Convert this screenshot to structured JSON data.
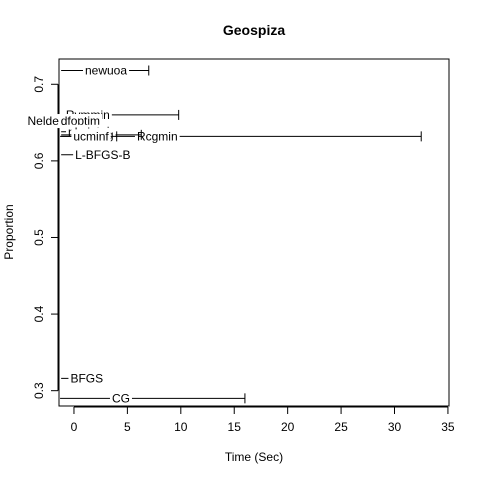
{
  "chart_data": {
    "type": "scatter",
    "title": "Geospiza",
    "xlabel": "Time (Sec)",
    "ylabel": "Proportion",
    "xlim": [
      -1.4,
      35.1
    ],
    "ylim": [
      0.28,
      0.733
    ],
    "x_ticks": [
      "0",
      "5",
      "10",
      "15",
      "20",
      "25",
      "30",
      "35"
    ],
    "y_ticks": [
      "0.3",
      "0.4",
      "0.5",
      "0.6",
      "0.7"
    ],
    "points": [
      {
        "label": "newuoa",
        "x": 3.0,
        "y": 0.718,
        "xlo": -1.2,
        "xhi": 7.0
      },
      {
        "label": "Rvmmin",
        "x": 1.3,
        "y": 0.66,
        "xlo": -1.3,
        "xhi": 9.8
      },
      {
        "label": "Nelder-Mead",
        "x": -1.1,
        "y": 0.652,
        "xlo": -1.4,
        "xhi": -0.6
      },
      {
        "label": "dfoptim",
        "x": 0.6,
        "y": 0.652,
        "xlo": -1.2,
        "xhi": 2.0
      },
      {
        "label": "nlminb",
        "x": 1.1,
        "y": 0.638,
        "xlo": -1.2,
        "xhi": 3.2
      },
      {
        "label": "Rcgmin",
        "x": 7.8,
        "y": 0.632,
        "xlo": -1.3,
        "xhi": 32.5
      },
      {
        "label": "spg",
        "x": 2.8,
        "y": 0.634,
        "xlo": -1.2,
        "xhi": 6.3
      },
      {
        "label": "ucminf",
        "x": 1.6,
        "y": 0.632,
        "xlo": -1.2,
        "xhi": 4.0
      },
      {
        "label": "L-BFGS-B",
        "x": 2.7,
        "y": 0.608,
        "xlo": -1.2,
        "xhi": 4.8
      },
      {
        "label": "BFGS",
        "x": 1.2,
        "y": 0.316,
        "xlo": -1.2,
        "xhi": 2.4
      },
      {
        "label": "CG",
        "x": 4.4,
        "y": 0.29,
        "xlo": -1.3,
        "xhi": 16.0
      }
    ]
  }
}
